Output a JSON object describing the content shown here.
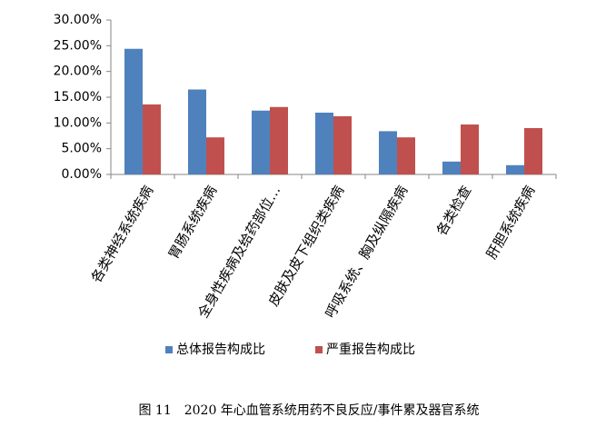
{
  "chart_data": {
    "type": "bar",
    "categories": [
      "各类神经系统疾病",
      "胃肠系统疾病",
      "全身性疾病及给药部位…",
      "皮肤及皮下组织类疾病",
      "呼吸系统、胸及纵隔疾病",
      "各类检查",
      "肝胆系统疾病"
    ],
    "series": [
      {
        "name": "总体报告构成比",
        "color": "#4f81bd",
        "values": [
          24.4,
          16.5,
          12.4,
          12.0,
          8.4,
          2.5,
          1.8
        ]
      },
      {
        "name": "严重报告构成比",
        "color": "#c0504d",
        "values": [
          13.6,
          7.2,
          13.1,
          11.3,
          7.2,
          9.7,
          9.0
        ]
      }
    ],
    "ylim": [
      0,
      30
    ],
    "yticks": [
      {
        "value": 0,
        "label": "0.00%"
      },
      {
        "value": 5,
        "label": "5.00%"
      },
      {
        "value": 10,
        "label": "10.00%"
      },
      {
        "value": 15,
        "label": "15.00%"
      },
      {
        "value": 20,
        "label": "20.00%"
      },
      {
        "value": 25,
        "label": "25.00%"
      },
      {
        "value": 30,
        "label": "30.00%"
      }
    ],
    "grid": false,
    "legend": "bottom",
    "caption": "图 11　2020 年心血管系统用药不良反应/事件累及器官系统"
  }
}
